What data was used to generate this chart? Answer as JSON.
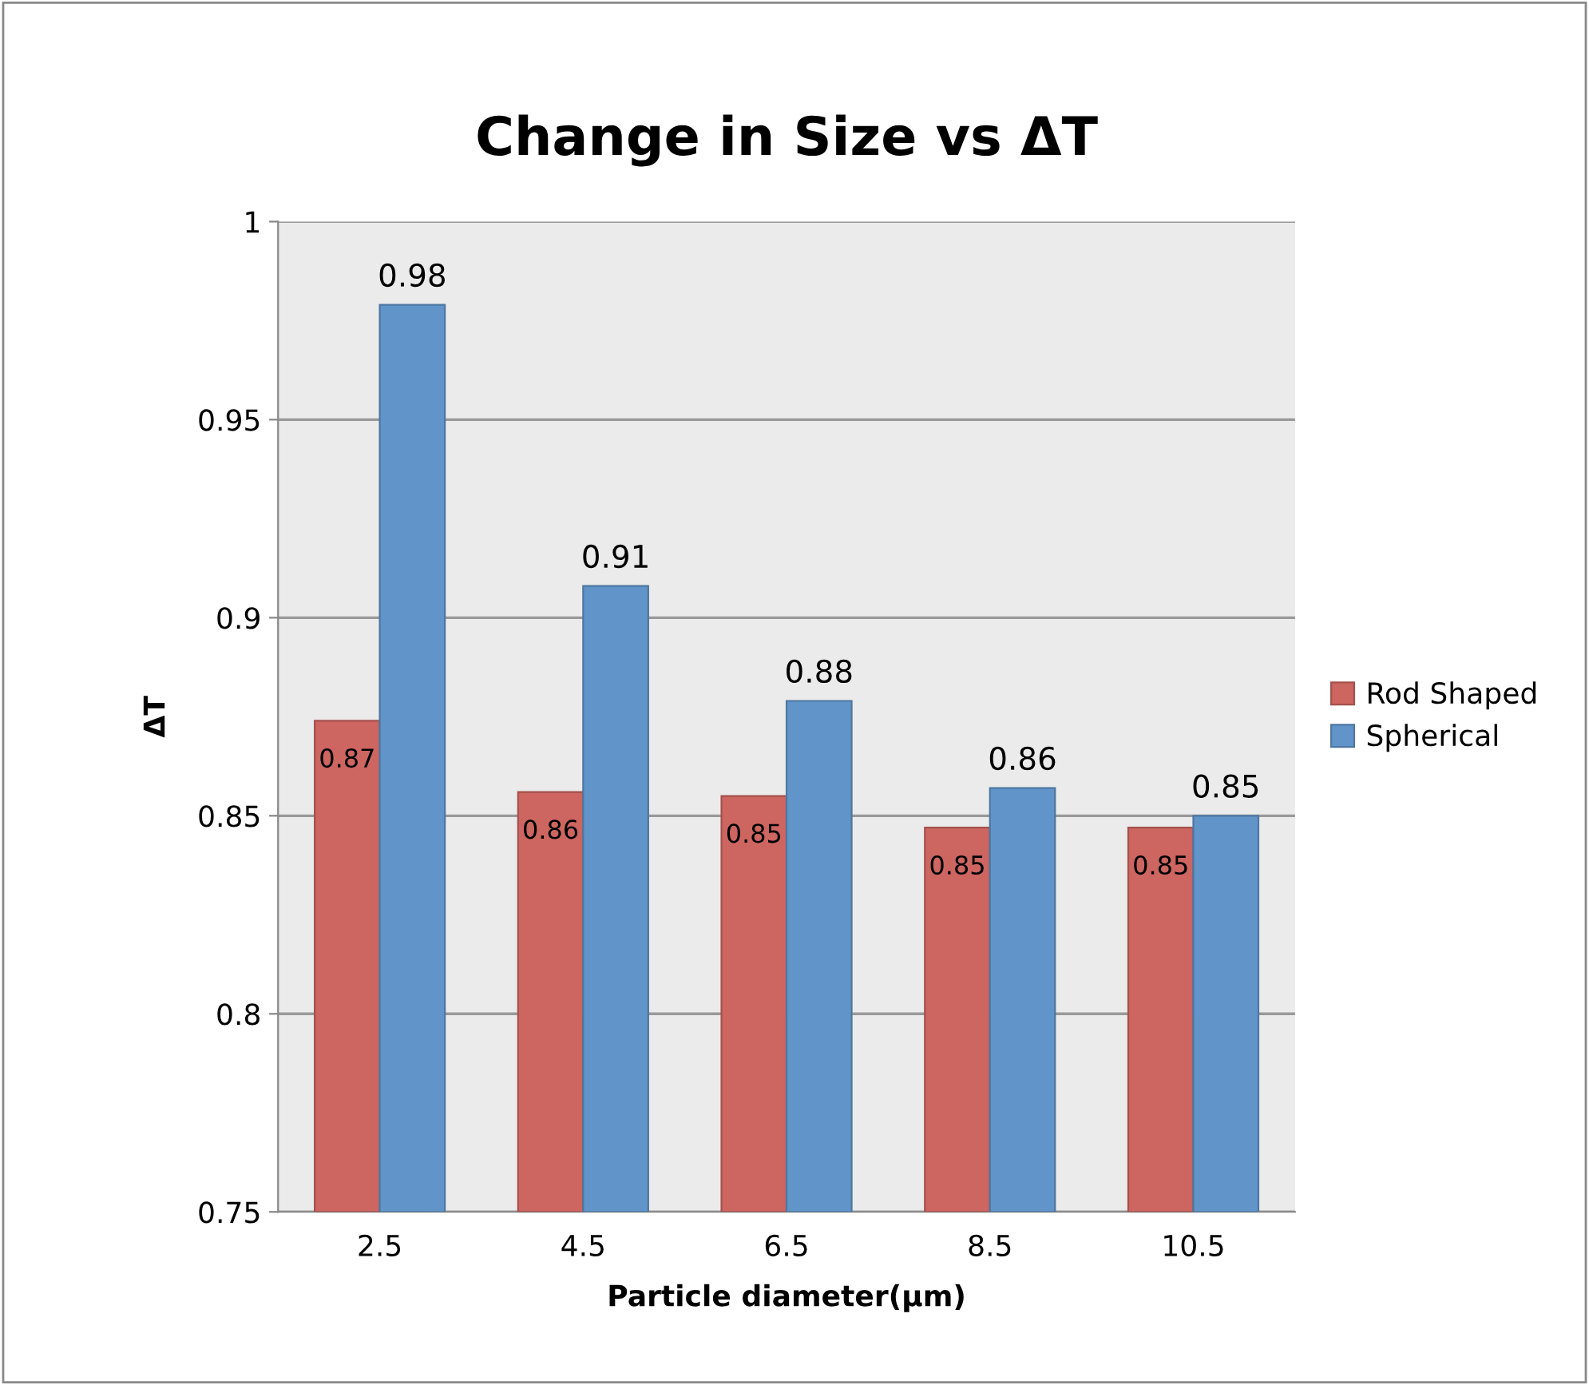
{
  "chart_data": {
    "type": "bar",
    "title": "Change in Size vs ΔT",
    "xlabel": "Particle diameter(µm)",
    "ylabel": "ΔT",
    "categories": [
      "2.5",
      "4.5",
      "6.5",
      "8.5",
      "10.5"
    ],
    "series": [
      {
        "name": "Rod Shaped",
        "color": "#cd6560",
        "values": [
          0.874,
          0.856,
          0.855,
          0.847,
          0.847
        ],
        "value_labels": [
          "0.87",
          "0.86",
          "0.85",
          "0.85",
          "0.85"
        ]
      },
      {
        "name": "Spherical",
        "color": "#6195c9",
        "values": [
          0.979,
          0.908,
          0.879,
          0.857,
          0.85
        ],
        "value_labels": [
          "0.98",
          "0.91",
          "0.88",
          "0.86",
          "0.85"
        ]
      }
    ],
    "ylim": [
      0.75,
      1
    ],
    "yticks": [
      0.75,
      0.8,
      0.85,
      0.9,
      0.95,
      1
    ],
    "grid": "y",
    "legend": "right"
  }
}
